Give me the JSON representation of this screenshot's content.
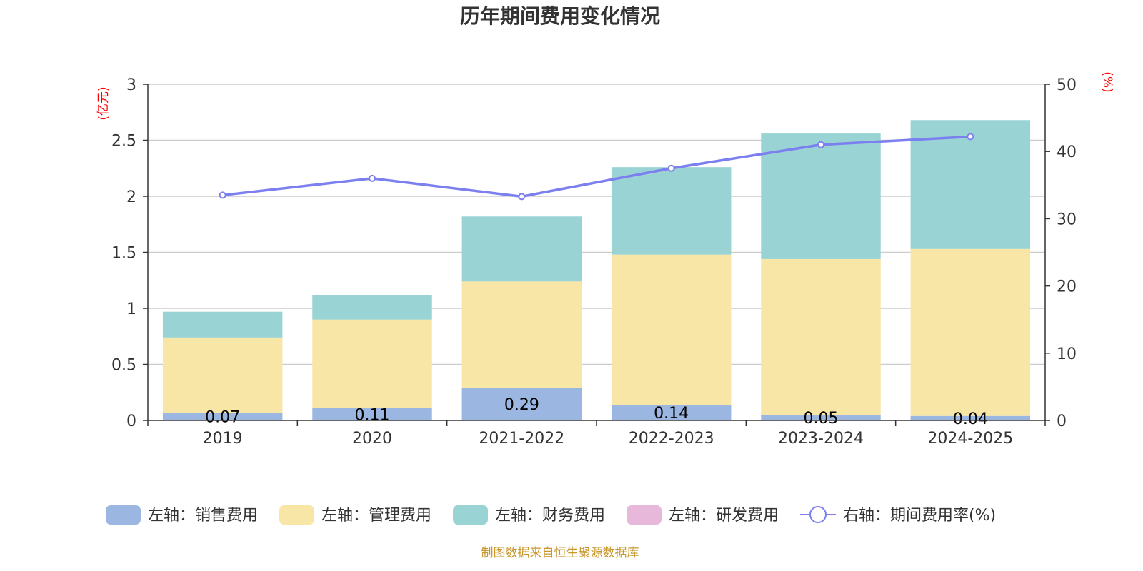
{
  "chart_data": {
    "type": "bar",
    "stacked": true,
    "title": "历年期间费用变化情况",
    "source": "制图数据来自恒生聚源数据库",
    "categories": [
      "2019",
      "2020",
      "2021-2022",
      "2022-2023",
      "2023-2024",
      "2024-2025"
    ],
    "y_left": {
      "unit": "(亿元)",
      "min": 0,
      "max": 3,
      "ticks": [
        0,
        0.5,
        1,
        1.5,
        2,
        2.5,
        3
      ]
    },
    "y_right": {
      "unit": "(%)",
      "min": 0,
      "max": 50,
      "ticks": [
        0,
        10,
        20,
        30,
        40,
        50
      ]
    },
    "series": [
      {
        "name": "左轴：销售费用",
        "axis": "left",
        "color": "#9bb6e0",
        "values": [
          0.07,
          0.11,
          0.29,
          0.14,
          0.05,
          0.04
        ],
        "labels": [
          "0.07",
          "0.11",
          "0.29",
          "0.14",
          "0.05",
          "0.04"
        ]
      },
      {
        "name": "左轴：管理费用",
        "axis": "left",
        "color": "#f7e6a6",
        "values": [
          0.67,
          0.79,
          0.95,
          1.34,
          1.39,
          1.49
        ]
      },
      {
        "name": "左轴：财务费用",
        "axis": "left",
        "color": "#99d3d4",
        "values": [
          0.23,
          0.22,
          0.58,
          0.78,
          1.12,
          1.15
        ]
      },
      {
        "name": "左轴：研发费用",
        "axis": "left",
        "color": "#e7b8d9",
        "values": [
          0,
          0,
          0,
          0,
          0,
          0
        ]
      },
      {
        "name": "右轴：期间费用率(%)",
        "axis": "right",
        "type": "line",
        "color": "#7b7fef",
        "values": [
          33.5,
          36,
          33.3,
          37.5,
          41,
          42.2
        ]
      }
    ]
  }
}
